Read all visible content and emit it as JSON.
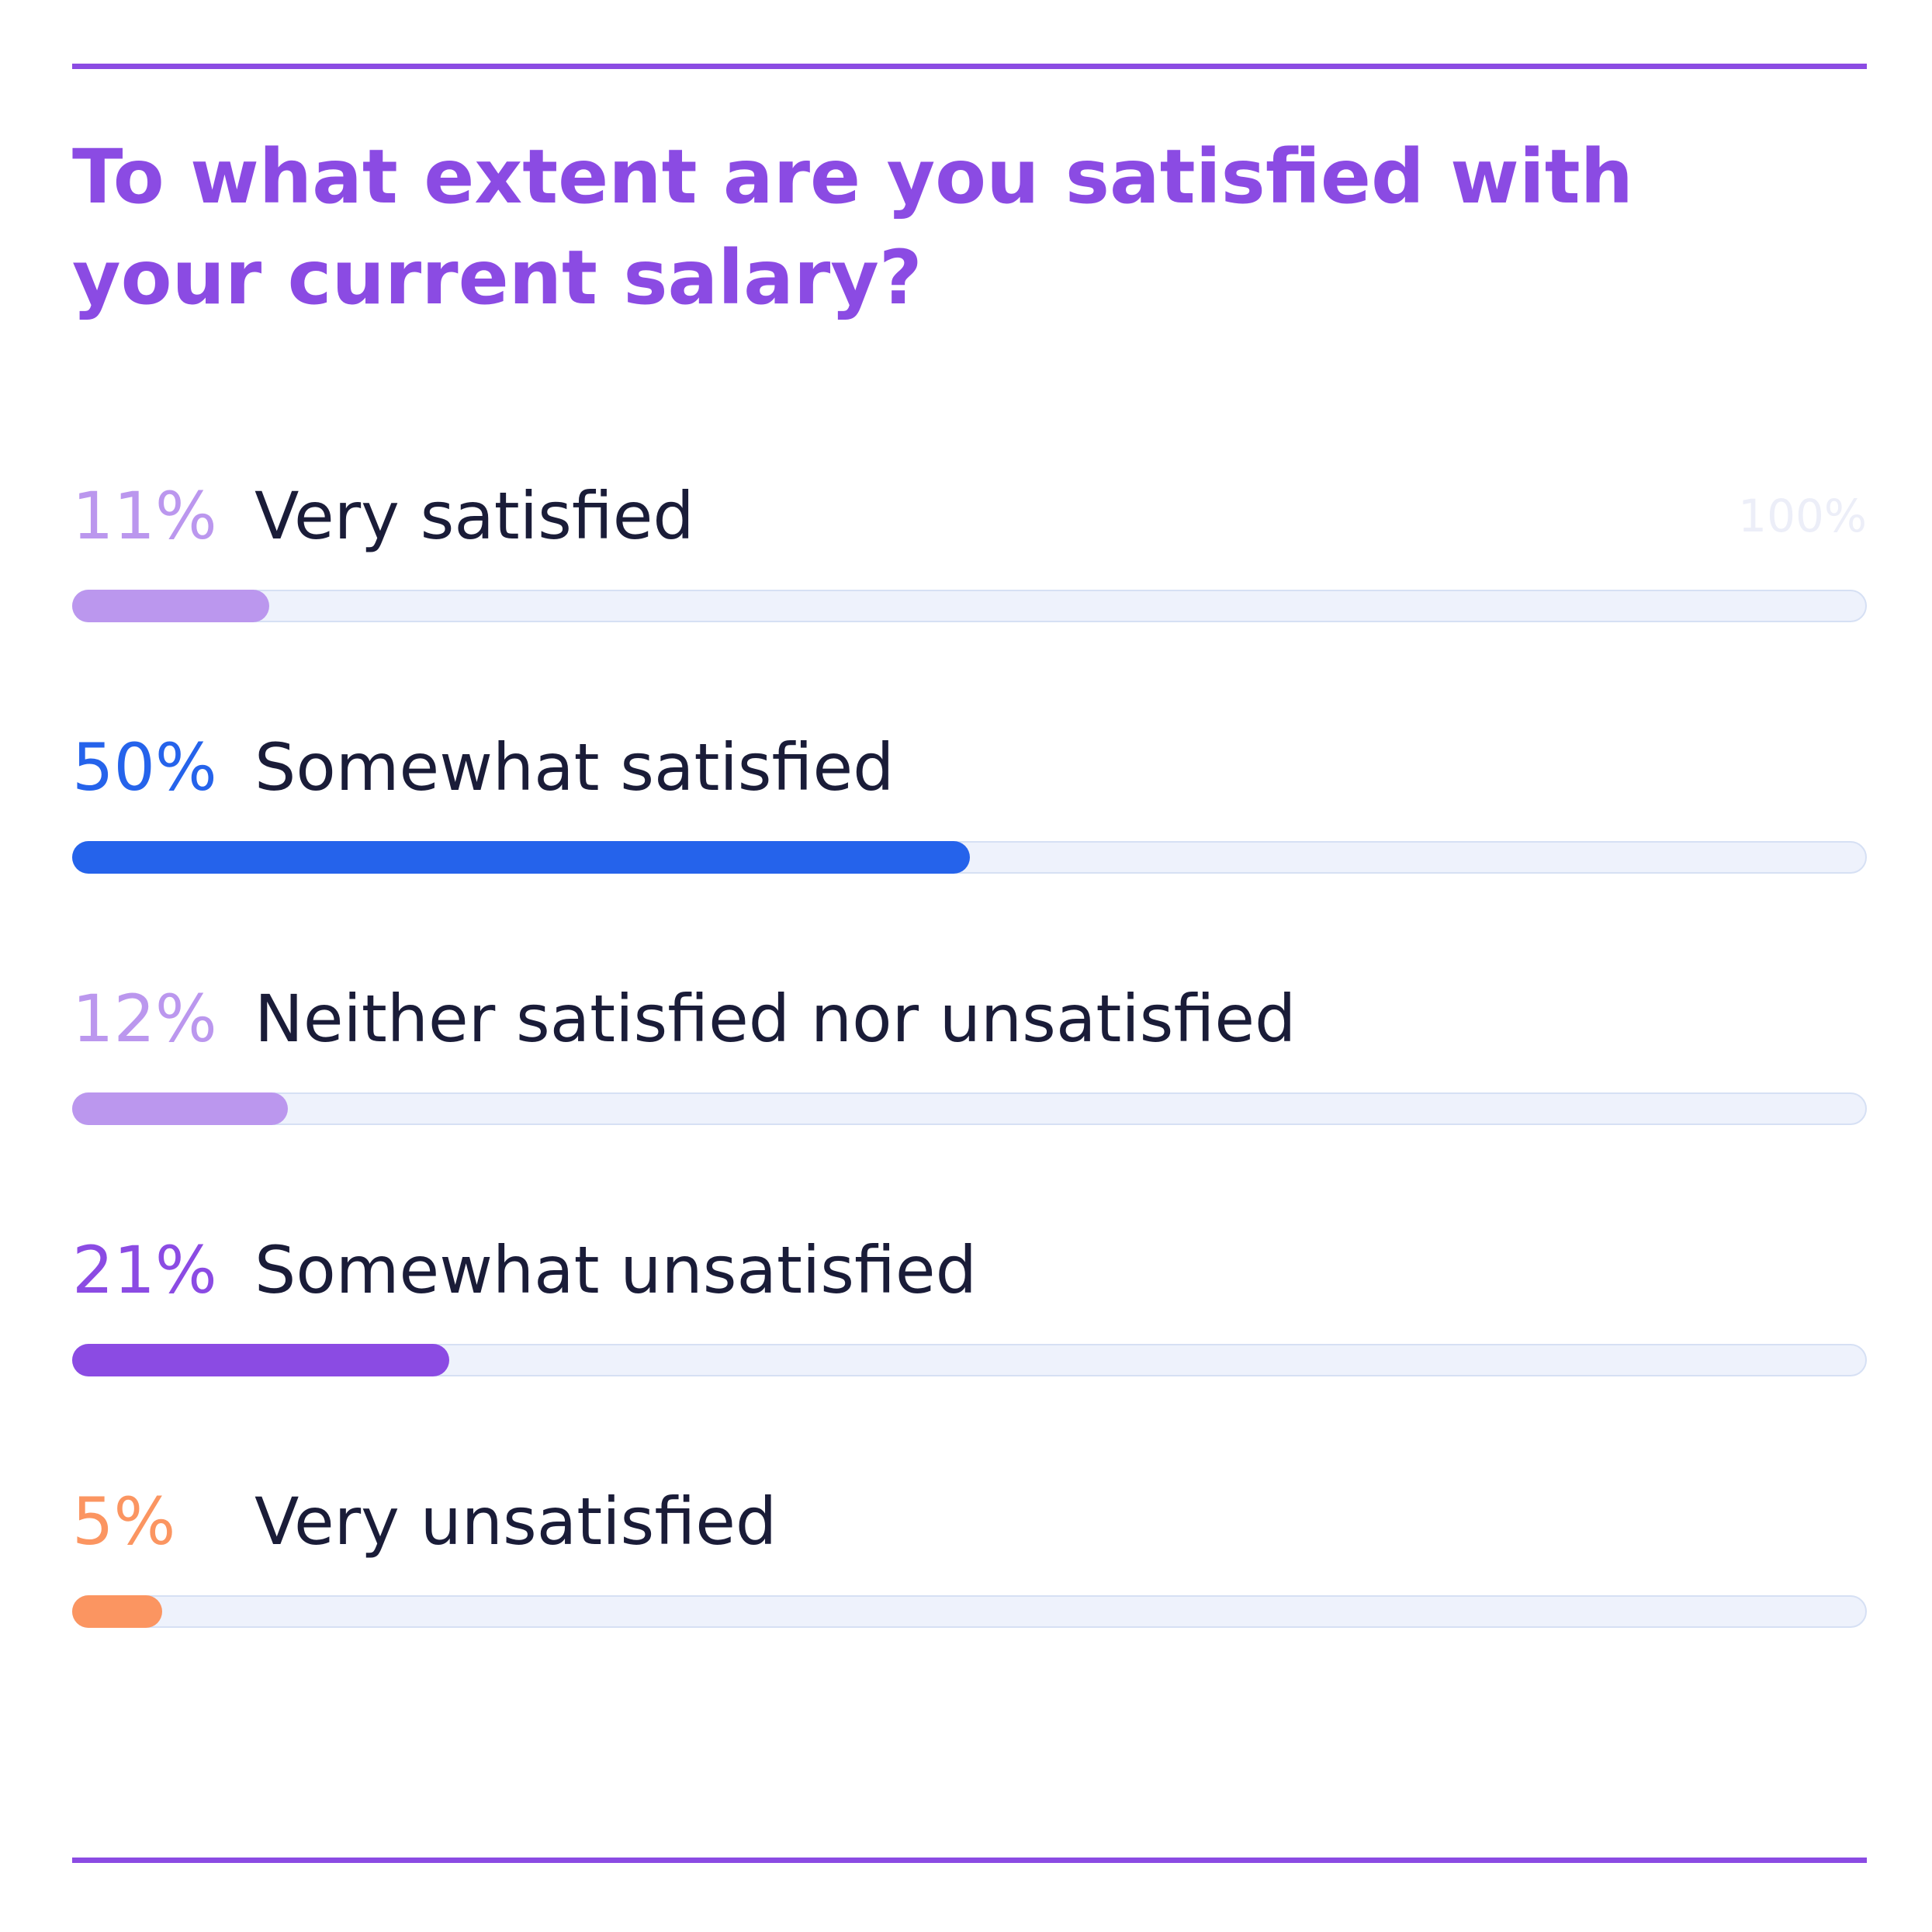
{
  "colors": {
    "accent_purple": "#8b4be3",
    "title": "#8b4be3",
    "label_text": "#1a1c38",
    "track": "#eef2fc",
    "track_border": "#d6e0f4",
    "max_label": "#eceef8"
  },
  "chart_data": {
    "type": "bar",
    "orientation": "horizontal",
    "title": "To what extent are you satisfied with your current salary?",
    "max_label": "100%",
    "xlim": [
      0,
      100
    ],
    "unit": "%",
    "grid": false,
    "legend": "none",
    "categories": [
      "Very satisfied",
      "Somewhat satisfied",
      "Neither satisfied nor unsatisfied",
      "Somewhat unsatisfied",
      "Very unsatisfied"
    ],
    "values": [
      11,
      50,
      12,
      21,
      5
    ],
    "value_labels": [
      "11%",
      "50%",
      "12%",
      "21%",
      "5%"
    ],
    "bar_colors": [
      "#bb97ee",
      "#2563eb",
      "#bb97ee",
      "#8b4be3",
      "#fb9561"
    ]
  }
}
